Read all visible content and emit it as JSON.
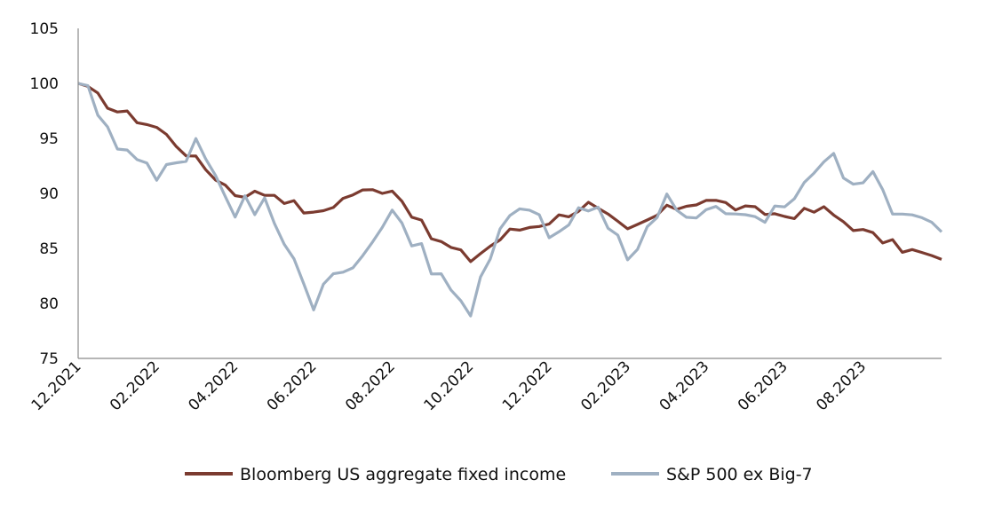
{
  "chart_data": {
    "type": "line",
    "title": "",
    "xlabel": "",
    "ylabel": "",
    "ylim": [
      75,
      105
    ],
    "yticks": [
      "75",
      "80",
      "85",
      "90",
      "95",
      "100",
      "105"
    ],
    "xticks": [
      "12.2021",
      "02.2022",
      "04.2022",
      "06.2022",
      "08.2022",
      "10.2022",
      "12.2022",
      "02.2023",
      "04.2023",
      "06.2023",
      "08.2023"
    ],
    "x_range": [
      "12.2021",
      "10.2023"
    ],
    "grid": false,
    "legend": "bottom",
    "series": [
      {
        "name": "Bloomberg US aggregate fixed income",
        "color": "#7b3b30",
        "x": [
          "12.2021",
          "01.2022",
          "02.2022",
          "03.2022",
          "04.2022",
          "05.2022",
          "06.2022",
          "07.2022",
          "08.2022",
          "09.2022",
          "10.2022",
          "11.2022",
          "12.2022",
          "01.2023",
          "02.2023",
          "03.2023",
          "04.2023",
          "05.2023",
          "06.2023",
          "07.2023",
          "08.2023",
          "09.2023",
          "10.2023"
        ],
        "values": [
          100.0,
          97.5,
          96.0,
          93.0,
          90.0,
          90.0,
          88.0,
          90.0,
          90.5,
          86.0,
          84.0,
          86.5,
          87.5,
          89.0,
          86.5,
          88.5,
          89.5,
          88.5,
          88.0,
          88.5,
          86.5,
          85.0,
          84.0
        ]
      },
      {
        "name": "S&P 500 ex Big-7",
        "color": "#9fb0c2",
        "x": [
          "12.2021",
          "01.2022",
          "02.2022",
          "03.2022",
          "04.2022",
          "05.2022",
          "06.2022",
          "07.2022",
          "08.2022",
          "09.2022",
          "10.2022",
          "11.2022",
          "12.2022",
          "01.2023",
          "02.2023",
          "03.2023",
          "04.2023",
          "05.2023",
          "06.2023",
          "07.2023",
          "08.2023",
          "09.2023",
          "10.2023"
        ],
        "values": [
          100.0,
          95.0,
          91.0,
          95.0,
          89.0,
          88.5,
          80.5,
          83.0,
          89.0,
          83.0,
          79.0,
          89.0,
          87.0,
          89.0,
          85.0,
          89.0,
          88.0,
          87.0,
          89.0,
          93.0,
          91.5,
          88.5,
          86.5
        ]
      }
    ]
  }
}
